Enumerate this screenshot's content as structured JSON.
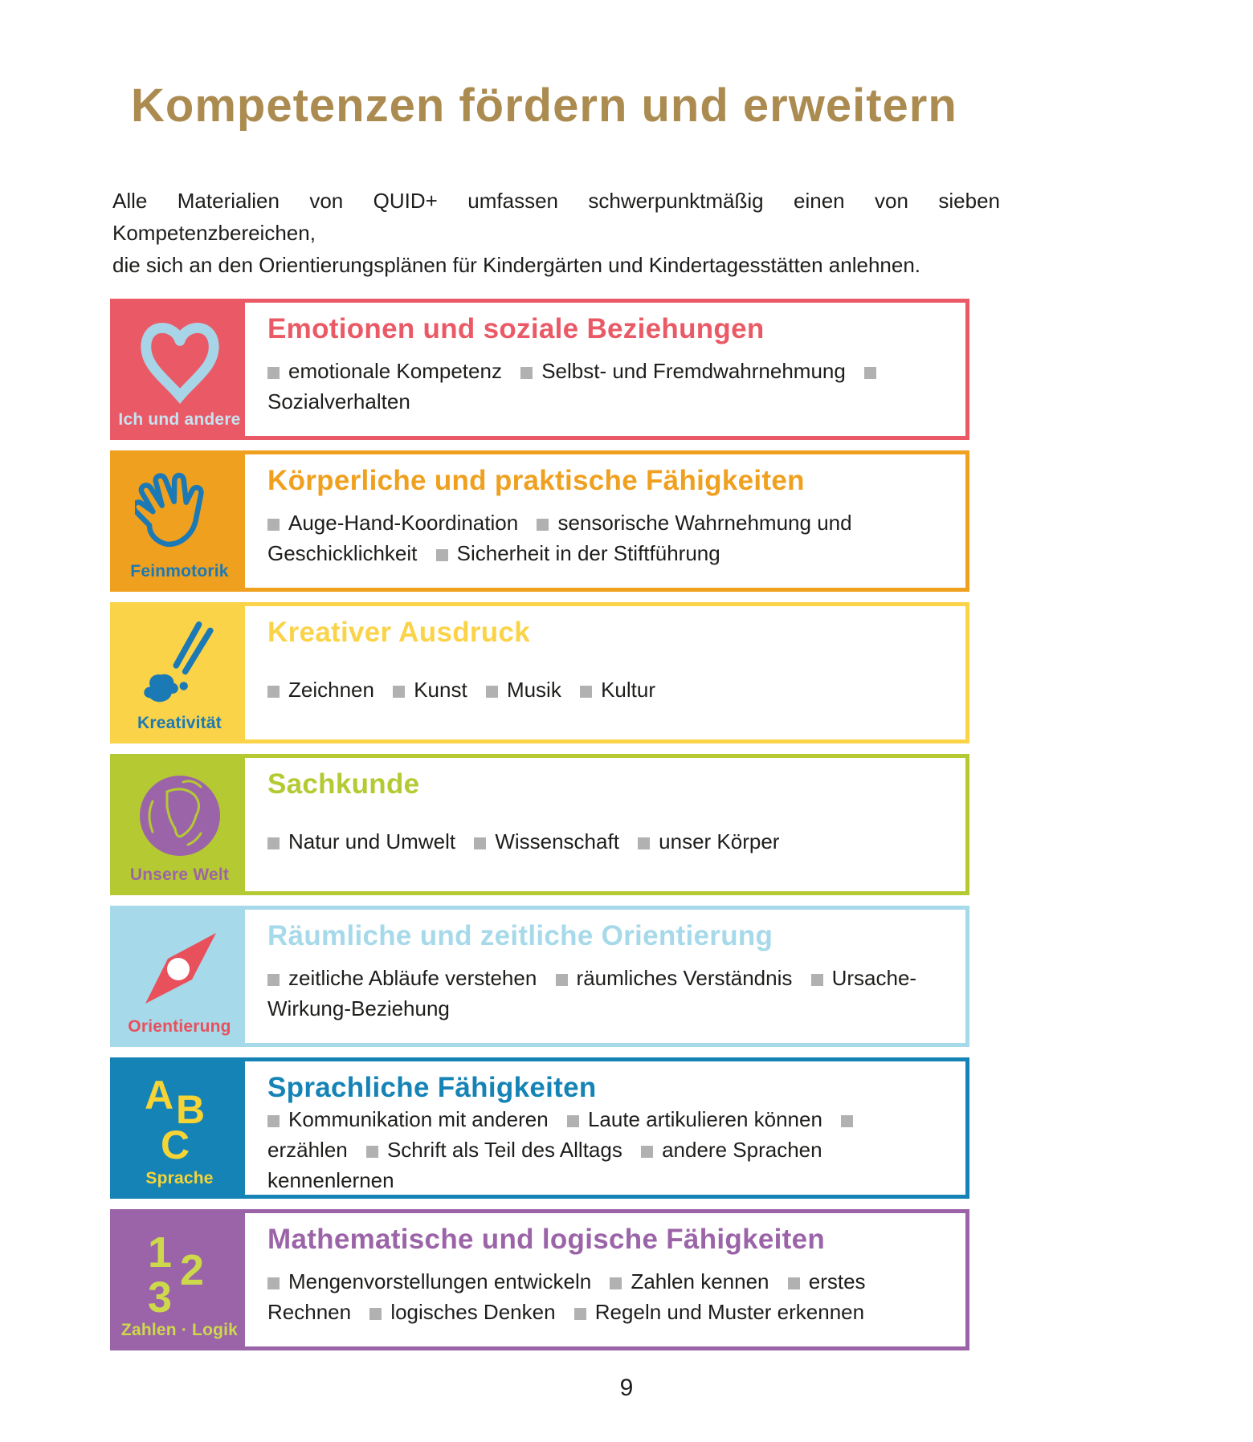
{
  "page": {
    "title": "Kompetenzen fördern und erweitern",
    "intro_line1": "Alle Materialien von QUID+ umfassen schwerpunktmäßig einen von sieben Kompetenzbereichen,",
    "intro_line2": "die sich an den Orientierungsplänen für Kindergärten und Kindertagesstätten anlehnen.",
    "page_number": "9"
  },
  "colors": {
    "title_gold": "#ab8b50",
    "body_text": "#1d1d1b",
    "bullet_gray": "#b1b1b1"
  },
  "boxes": [
    {
      "id": "emotionen-und-soziale-beziehungen",
      "title": "Emotionen und soziale Beziehungen",
      "color": "#ea5a66",
      "icon": "heart-icon",
      "icon_color": "#a8d4e8",
      "badge_label": "Ich und andere",
      "badge_label_color": "#c6e3f0",
      "items": [
        "emotionale Kompetenz",
        "Selbst- und Fremdwahrnehmung",
        "Sozialverhalten"
      ]
    },
    {
      "id": "koerperliche-und-praktische-faehigkeiten",
      "title": "Körperliche und praktische Fähigkeiten",
      "color": "#efa01f",
      "icon": "hand-icon",
      "icon_color": "#1b79b5",
      "badge_label": "Feinmotorik",
      "badge_label_color": "#1b79b5",
      "items": [
        "Auge-Hand-Koordination",
        "sensorische Wahrnehmung und Geschicklichkeit",
        "Sicherheit in der Stiftführung"
      ]
    },
    {
      "id": "kreativer-ausdruck",
      "title": "Kreativer Ausdruck",
      "color": "#fbd348",
      "icon": "paintbrush-icon",
      "icon_color": "#1b79b5",
      "badge_label": "Kreativität",
      "badge_label_color": "#1b79b5",
      "items": [
        "Zeichnen",
        "Kunst",
        "Musik",
        "Kultur"
      ]
    },
    {
      "id": "sachkunde",
      "title": "Sachkunde",
      "color": "#b5ca32",
      "icon": "globe-icon",
      "icon_color": "#9c64a8",
      "badge_label": "Unsere Welt",
      "badge_label_color": "#9c64a8",
      "items": [
        "Natur und Umwelt",
        "Wissenschaft",
        "unser Körper"
      ]
    },
    {
      "id": "raeumliche-und-zeitliche-orientierung",
      "title": "Räumliche und zeitliche Orientierung",
      "color": "#a6d9e9",
      "icon": "compass-needle-icon",
      "icon_color": "#e8505c",
      "badge_label": "Orientierung",
      "badge_label_color": "#e8505c",
      "items": [
        "zeitliche Abläufe verstehen",
        "räumliches Verständnis",
        "Ursache-Wirkung-Beziehung"
      ]
    },
    {
      "id": "sprachliche-faehigkeiten",
      "title": "Sprachliche Fähigkeiten",
      "color": "#1583b5",
      "icon": "abc-letters-icon",
      "icon_color": "#f7d435",
      "icon_text": "ABC",
      "badge_label": "Sprache",
      "badge_label_color": "#f7d435",
      "items": [
        "Kommunikation mit anderen",
        "Laute artikulieren können",
        "erzählen",
        "Schrift als Teil des Alltags",
        "andere Sprachen kennenlernen"
      ]
    },
    {
      "id": "mathematische-und-logische-faehigkeiten",
      "title": "Mathematische und logische Fähigkeiten",
      "color": "#9c64a8",
      "icon": "numbers-123-icon",
      "icon_color": "#cdd94a",
      "icon_text": "123",
      "badge_label": "Zahlen · Logik",
      "badge_label_color": "#cdd94a",
      "items": [
        "Mengenvorstellungen entwickeln",
        "Zahlen kennen",
        "erstes Rechnen",
        "logisches Denken",
        "Regeln und Muster erkennen"
      ]
    }
  ]
}
